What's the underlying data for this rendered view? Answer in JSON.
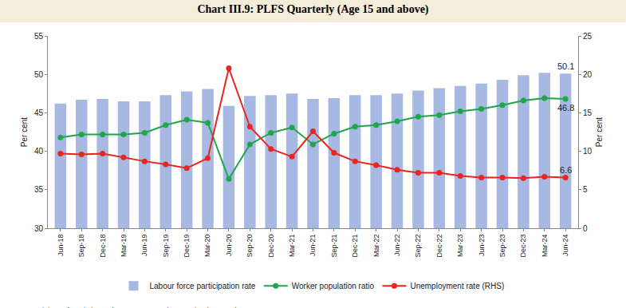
{
  "chart_data": {
    "type": "bar",
    "title": "Chart III.9: PLFS Quarterly (Age 15 and above)",
    "y_label": "Per cent",
    "y2_label": "Per cent",
    "source": "Source: Ministry of Statistics and Programme Implementation (MoS&PI).",
    "categories": [
      "Jun-18",
      "Sep-18",
      "Dec-18",
      "Mar-19",
      "Jun-19",
      "Sep-19",
      "Dec-19",
      "Mar-20",
      "Jun-20",
      "Sep-20",
      "Dec-20",
      "Mar-21",
      "Jun-21",
      "Sep-21",
      "Dec-21",
      "Mar-22",
      "Jun-22",
      "Sep-22",
      "Dec-22",
      "Mar-23",
      "Jun-23",
      "Sep-23",
      "Dec-23",
      "Mar-24",
      "Jun-24"
    ],
    "series": [
      {
        "name": "Labour force participation rate",
        "type": "bar",
        "color": "#a7b9e3",
        "values": [
          46.2,
          46.7,
          46.8,
          46.5,
          46.5,
          47.3,
          47.8,
          48.1,
          45.9,
          47.2,
          47.3,
          47.5,
          46.8,
          46.9,
          47.3,
          47.3,
          47.5,
          47.9,
          48.2,
          48.5,
          48.8,
          49.3,
          49.9,
          50.2,
          50.1
        ]
      },
      {
        "name": "Worker population ratio",
        "type": "line",
        "color": "#1fa64a",
        "marker": "circle",
        "values": [
          41.8,
          42.2,
          42.2,
          42.2,
          42.4,
          43.4,
          44.1,
          43.7,
          36.4,
          40.9,
          42.4,
          43.1,
          40.9,
          42.3,
          43.2,
          43.4,
          43.9,
          44.5,
          44.7,
          45.2,
          45.5,
          46.0,
          46.6,
          46.9,
          46.8
        ]
      },
      {
        "name": "Unemployment rate (RHS)",
        "type": "line",
        "color": "#e8251f",
        "marker": "circle",
        "axis": "y2",
        "values": [
          9.7,
          9.6,
          9.7,
          9.2,
          8.7,
          8.3,
          7.8,
          9.1,
          20.8,
          13.2,
          10.3,
          9.3,
          12.6,
          9.8,
          8.7,
          8.2,
          7.6,
          7.2,
          7.2,
          6.8,
          6.6,
          6.6,
          6.5,
          6.7,
          6.6
        ]
      }
    ],
    "ylim": [
      30,
      55
    ],
    "yticks": [
      30,
      35,
      40,
      45,
      50,
      55
    ],
    "y2lim": [
      0,
      25
    ],
    "y2ticks": [
      0,
      5,
      10,
      15,
      20,
      25
    ],
    "grid": false,
    "legend": "bottom",
    "annotations": [
      {
        "series": "Labour force participation rate",
        "category": "Jun-24",
        "text": "50.1"
      },
      {
        "series": "Worker population ratio",
        "category": "Jun-24",
        "text": "46.8"
      },
      {
        "series": "Unemployment rate (RHS)",
        "category": "Jun-24",
        "text": "6.6"
      }
    ]
  }
}
